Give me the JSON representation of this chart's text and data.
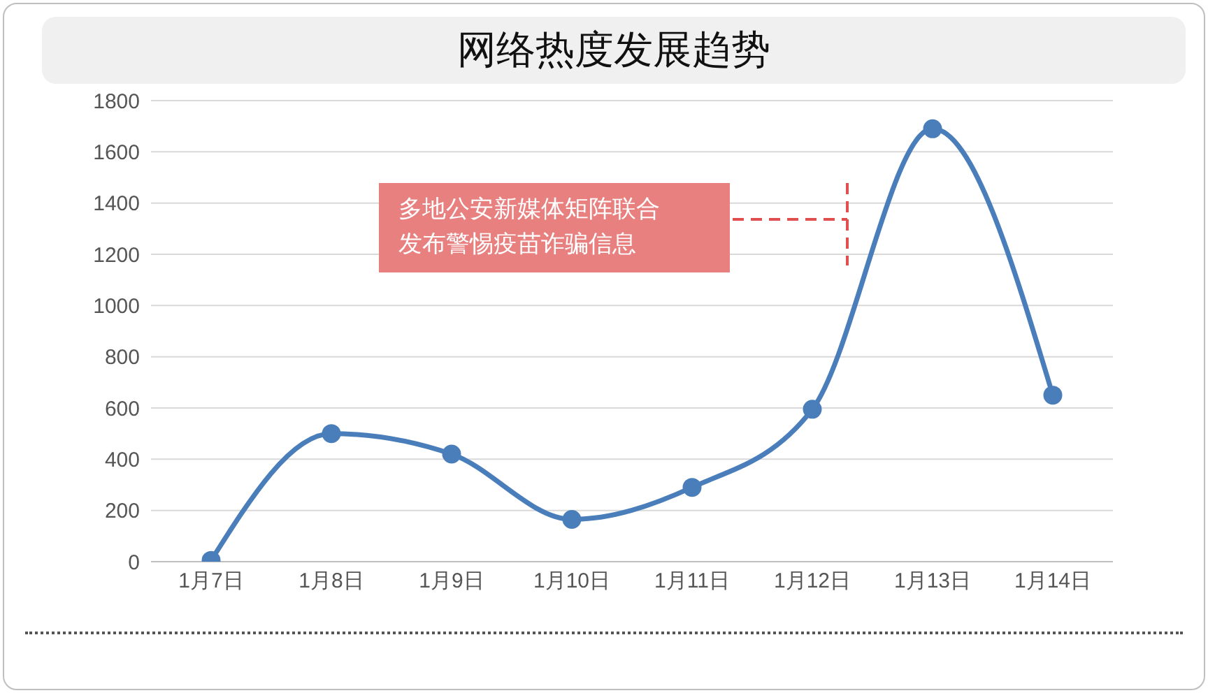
{
  "chart_data": {
    "type": "line",
    "title": "网络热度发展趋势",
    "categories": [
      "1月7日",
      "1月8日",
      "1月9日",
      "1月10日",
      "1月11日",
      "1月12日",
      "1月13日",
      "1月14日"
    ],
    "series": [
      {
        "color": "#4a7ebb",
        "values": [
          5,
          500,
          420,
          165,
          290,
          595,
          1690,
          650
        ]
      }
    ],
    "ylim": [
      0,
      1800
    ],
    "yticks": [
      0,
      200,
      400,
      600,
      800,
      1000,
      1200,
      1400,
      1600,
      1800
    ],
    "grid": "y",
    "marker": "circle",
    "line_style": "solid",
    "annotations": [
      "多地公安新媒体矩阵联合发布警惕疫苗诈骗信息"
    ]
  }
}
